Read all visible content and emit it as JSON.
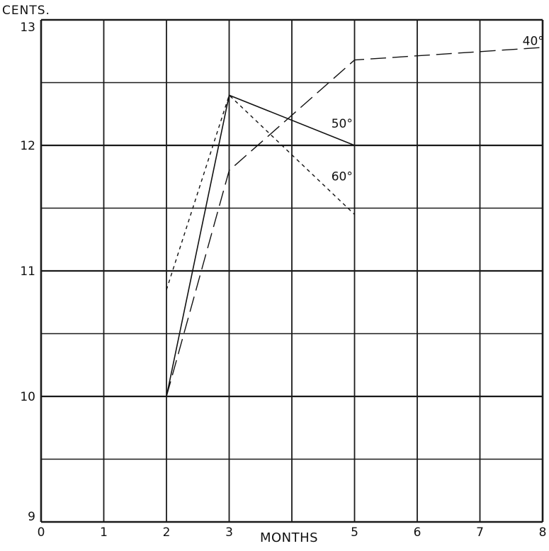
{
  "chart_data": {
    "type": "line",
    "title": "",
    "ylabel": "CENTS.",
    "xlabel": "MONTHS",
    "xlim": [
      0,
      8
    ],
    "ylim": [
      9,
      13
    ],
    "x_ticks": [
      {
        "value": 0,
        "label": "0"
      },
      {
        "value": 1,
        "label": "1"
      },
      {
        "value": 2,
        "label": "2"
      },
      {
        "value": 3,
        "label": "3"
      },
      {
        "value": 5,
        "label": "5"
      },
      {
        "value": 6,
        "label": "6"
      },
      {
        "value": 7,
        "label": "7"
      },
      {
        "value": 8,
        "label": "8"
      }
    ],
    "y_ticks": [
      {
        "value": 9,
        "label": "9"
      },
      {
        "value": 10,
        "label": "10"
      },
      {
        "value": 11,
        "label": "11"
      },
      {
        "value": 12,
        "label": "12"
      },
      {
        "value": 13,
        "label": "13"
      }
    ],
    "grid": {
      "on": true,
      "x_step": 1,
      "y_step": 0.5
    },
    "series": [
      {
        "name": "50°",
        "style": "solid",
        "points": [
          [
            2,
            10.0
          ],
          [
            3,
            12.4
          ],
          [
            5,
            12.0
          ]
        ],
        "label_at": [
          4.8,
          12.14
        ]
      },
      {
        "name": "60°",
        "style": "dotted",
        "points": [
          [
            2,
            10.85
          ],
          [
            3,
            12.4
          ],
          [
            5,
            11.45
          ]
        ],
        "label_at": [
          4.8,
          11.72
        ]
      },
      {
        "name": "40°",
        "style": "dashed",
        "points": [
          [
            2,
            10.0
          ],
          [
            3,
            11.8
          ],
          [
            5,
            12.68
          ],
          [
            8,
            12.78
          ]
        ],
        "label_at": [
          7.85,
          12.8
        ]
      }
    ]
  }
}
